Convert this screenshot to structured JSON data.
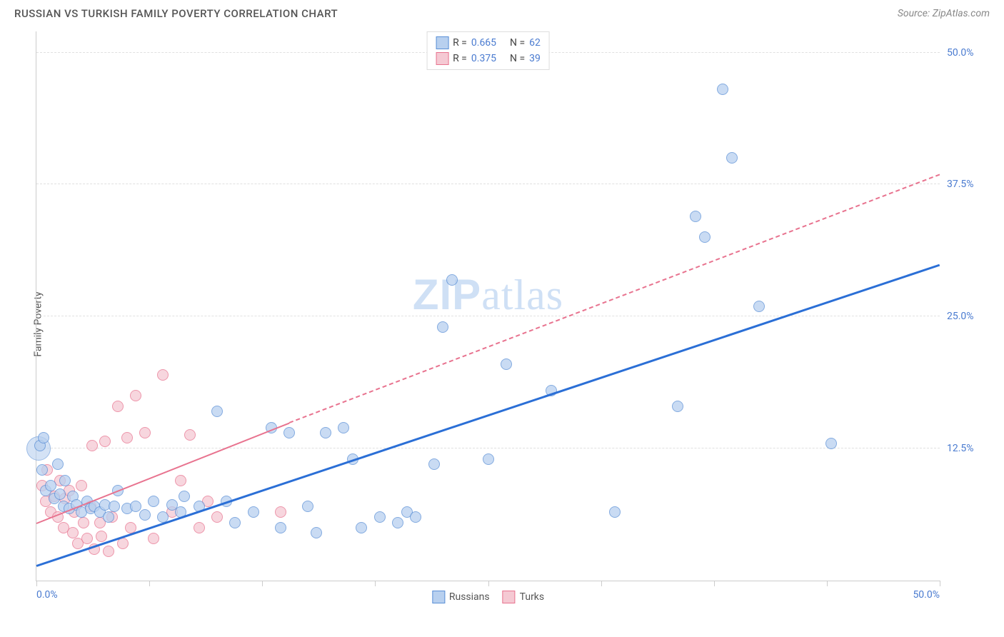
{
  "header": {
    "title": "RUSSIAN VS TURKISH FAMILY POVERTY CORRELATION CHART",
    "source": "Source: ZipAtlas.com"
  },
  "y_axis_label": "Family Poverty",
  "watermark": {
    "bold": "ZIP",
    "light": "atlas"
  },
  "chart": {
    "type": "scatter",
    "xlim": [
      0,
      50
    ],
    "ylim": [
      0,
      52
    ],
    "background_color": "#ffffff",
    "grid_color": "#e0e0e0",
    "axis_color": "#cccccc",
    "tick_label_color": "#4a7bd0",
    "y_ticks": [
      {
        "v": 12.5,
        "label": "12.5%"
      },
      {
        "v": 25.0,
        "label": "25.0%"
      },
      {
        "v": 37.5,
        "label": "37.5%"
      },
      {
        "v": 50.0,
        "label": "50.0%"
      }
    ],
    "x_tick_positions": [
      0,
      6.25,
      12.5,
      18.75,
      25,
      31.25,
      37.5,
      43.75,
      50
    ],
    "x_origin_label": "0.0%",
    "x_max_label": "50.0%",
    "marker_radius": 8,
    "marker_stroke_width": 1,
    "series": {
      "russians": {
        "label": "Russians",
        "fill": "#b8d0ef",
        "stroke": "#5a8fd6",
        "opacity": 0.75,
        "R": "0.665",
        "N": "62",
        "trend": {
          "color": "#2b6fd6",
          "width": 2.5,
          "solid_x0": 0,
          "solid_y0": 1.5,
          "solid_x1": 50,
          "solid_y1": 30
        },
        "points": [
          [
            0.2,
            12.8
          ],
          [
            0.3,
            10.5
          ],
          [
            0.4,
            13.5
          ],
          [
            0.5,
            8.5
          ],
          [
            0.8,
            9.0
          ],
          [
            1.0,
            7.8
          ],
          [
            1.2,
            11.0
          ],
          [
            1.3,
            8.2
          ],
          [
            1.5,
            7.0
          ],
          [
            1.6,
            9.5
          ],
          [
            1.8,
            6.8
          ],
          [
            2.0,
            8.0
          ],
          [
            2.2,
            7.2
          ],
          [
            2.5,
            6.5
          ],
          [
            2.8,
            7.5
          ],
          [
            3.0,
            6.8
          ],
          [
            3.2,
            7.0
          ],
          [
            3.5,
            6.5
          ],
          [
            3.8,
            7.2
          ],
          [
            4.0,
            6.0
          ],
          [
            4.3,
            7.0
          ],
          [
            4.5,
            8.5
          ],
          [
            5.0,
            6.8
          ],
          [
            5.5,
            7.0
          ],
          [
            6.0,
            6.2
          ],
          [
            6.5,
            7.5
          ],
          [
            7.0,
            6.0
          ],
          [
            7.5,
            7.2
          ],
          [
            8.0,
            6.5
          ],
          [
            8.2,
            8.0
          ],
          [
            9.0,
            7.0
          ],
          [
            10.0,
            16.0
          ],
          [
            10.5,
            7.5
          ],
          [
            11.0,
            5.5
          ],
          [
            12.0,
            6.5
          ],
          [
            13.0,
            14.5
          ],
          [
            13.5,
            5.0
          ],
          [
            14.0,
            14.0
          ],
          [
            15.0,
            7.0
          ],
          [
            15.5,
            4.5
          ],
          [
            16.0,
            14.0
          ],
          [
            17.0,
            14.5
          ],
          [
            17.5,
            11.5
          ],
          [
            18.0,
            5.0
          ],
          [
            19.0,
            6.0
          ],
          [
            20.0,
            5.5
          ],
          [
            20.5,
            6.5
          ],
          [
            21.0,
            6.0
          ],
          [
            22.0,
            11.0
          ],
          [
            22.5,
            24.0
          ],
          [
            23.0,
            28.5
          ],
          [
            25.0,
            11.5
          ],
          [
            26.0,
            20.5
          ],
          [
            28.5,
            18.0
          ],
          [
            32.0,
            6.5
          ],
          [
            35.5,
            16.5
          ],
          [
            36.5,
            34.5
          ],
          [
            37.0,
            32.5
          ],
          [
            38.0,
            46.5
          ],
          [
            38.5,
            40.0
          ],
          [
            40.0,
            26.0
          ],
          [
            44.0,
            13.0
          ]
        ]
      },
      "turks": {
        "label": "Turks",
        "fill": "#f5c9d3",
        "stroke": "#e8738f",
        "opacity": 0.75,
        "R": "0.375",
        "N": "39",
        "trend": {
          "color": "#e8738f",
          "width": 2,
          "solid_x0": 0,
          "solid_y0": 5.5,
          "solid_x1": 14,
          "solid_y1": 15,
          "dash_x0": 14,
          "dash_y0": 15,
          "dash_x1": 50,
          "dash_y1": 38.5
        },
        "points": [
          [
            0.3,
            9.0
          ],
          [
            0.5,
            7.5
          ],
          [
            0.6,
            10.5
          ],
          [
            0.8,
            6.5
          ],
          [
            1.0,
            8.0
          ],
          [
            1.2,
            6.0
          ],
          [
            1.3,
            9.5
          ],
          [
            1.5,
            5.0
          ],
          [
            1.6,
            7.8
          ],
          [
            1.8,
            8.5
          ],
          [
            2.0,
            4.5
          ],
          [
            2.1,
            6.5
          ],
          [
            2.3,
            3.5
          ],
          [
            2.5,
            9.0
          ],
          [
            2.6,
            5.5
          ],
          [
            2.8,
            4.0
          ],
          [
            3.0,
            7.0
          ],
          [
            3.1,
            12.8
          ],
          [
            3.2,
            3.0
          ],
          [
            3.5,
            5.5
          ],
          [
            3.6,
            4.2
          ],
          [
            3.8,
            13.2
          ],
          [
            4.0,
            2.8
          ],
          [
            4.2,
            6.0
          ],
          [
            4.5,
            16.5
          ],
          [
            4.8,
            3.5
          ],
          [
            5.0,
            13.5
          ],
          [
            5.2,
            5.0
          ],
          [
            5.5,
            17.5
          ],
          [
            6.0,
            14.0
          ],
          [
            6.5,
            4.0
          ],
          [
            7.0,
            19.5
          ],
          [
            7.5,
            6.5
          ],
          [
            8.0,
            9.5
          ],
          [
            8.5,
            13.8
          ],
          [
            9.0,
            5.0
          ],
          [
            9.5,
            7.5
          ],
          [
            10.0,
            6.0
          ],
          [
            13.5,
            6.5
          ]
        ]
      }
    }
  },
  "legend_top": {
    "R_label": "R =",
    "N_label": "N ="
  }
}
